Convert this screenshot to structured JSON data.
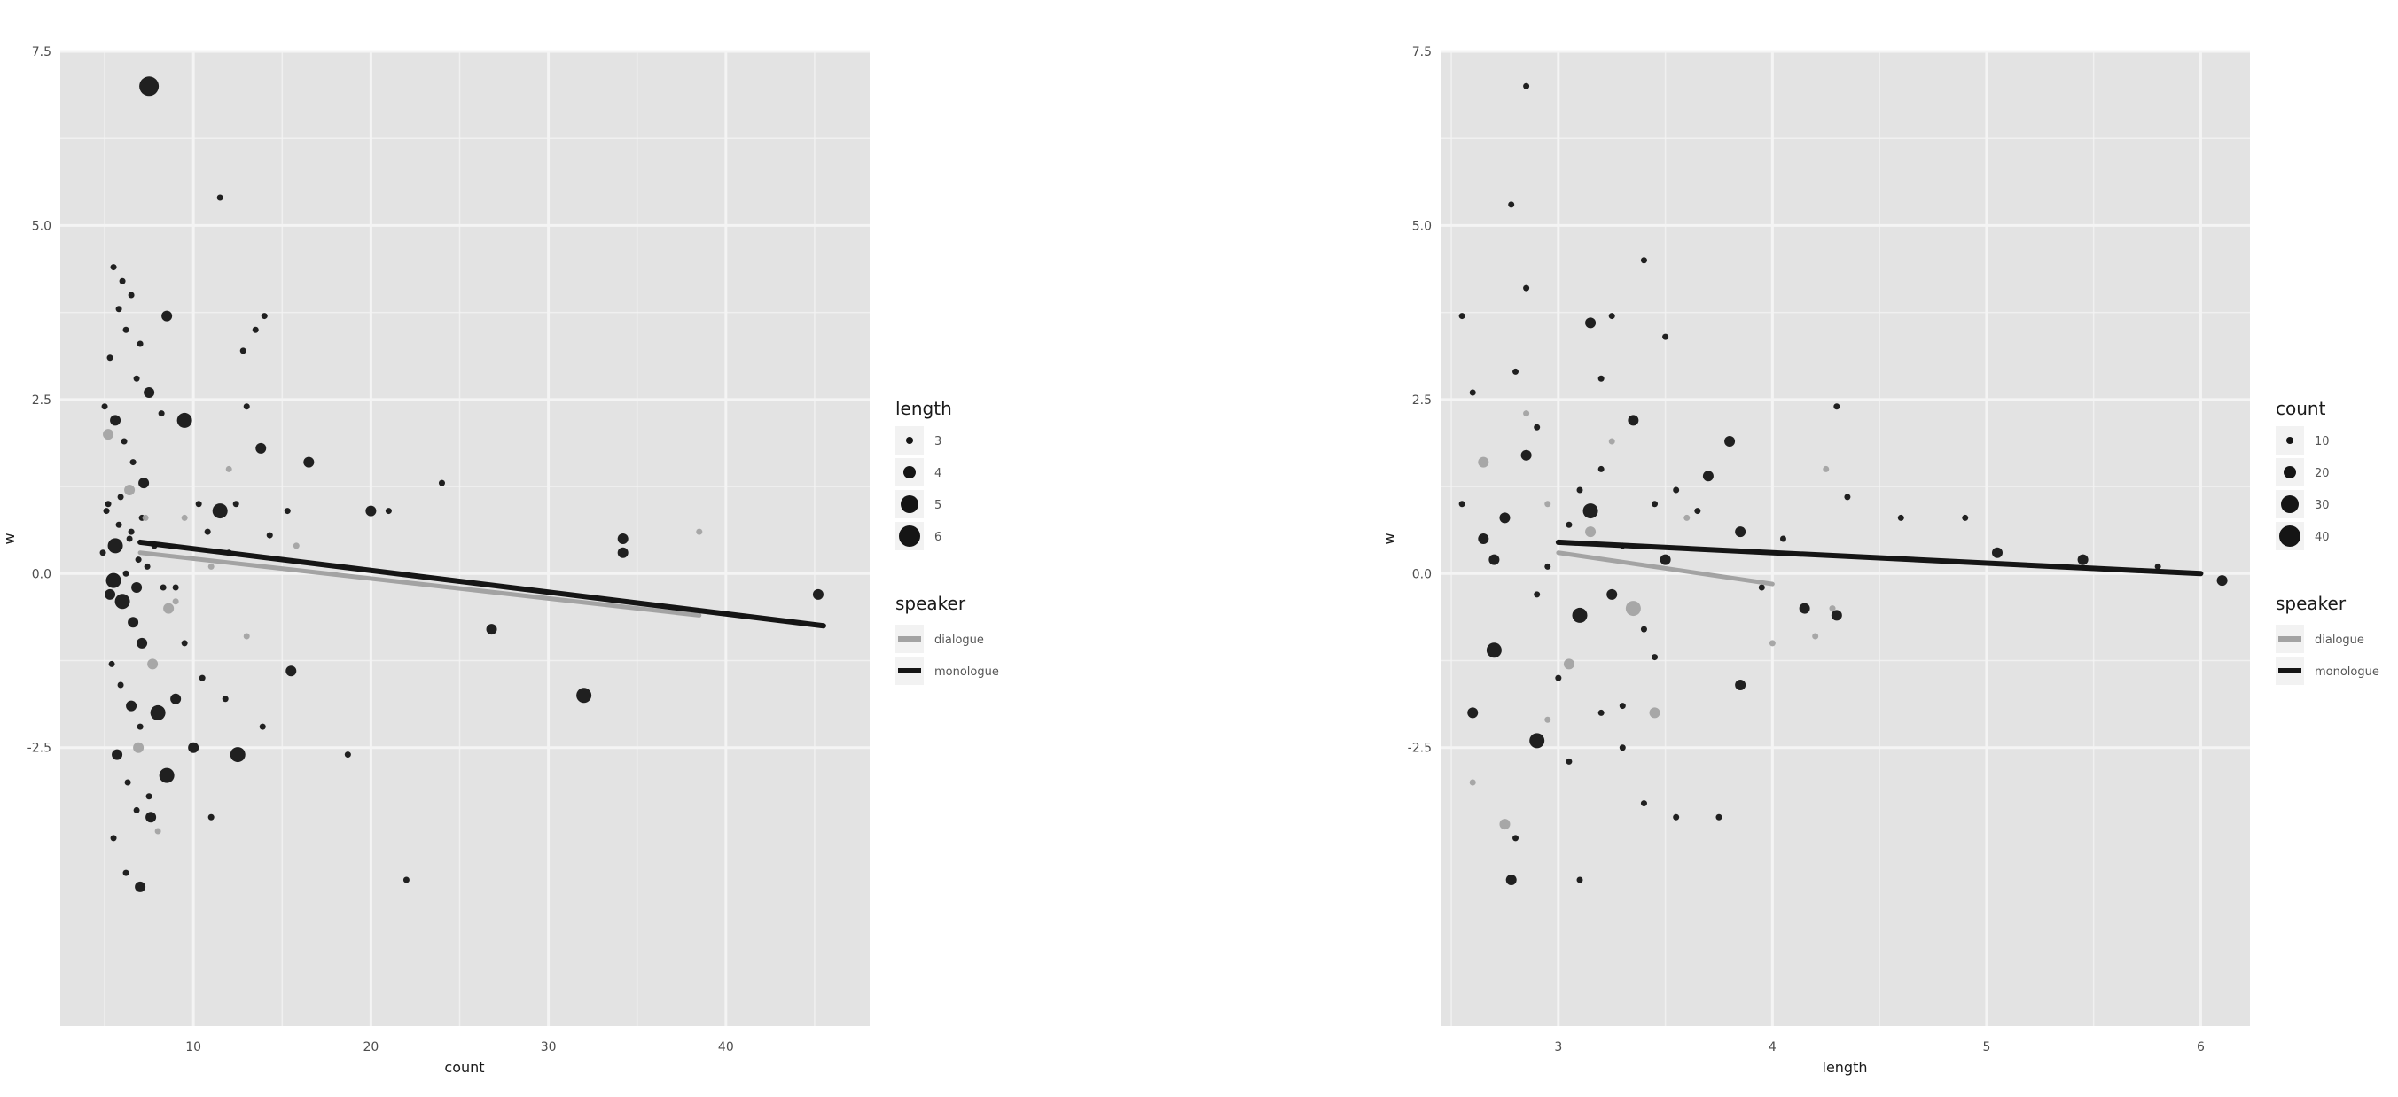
{
  "colors": {
    "panel": "#e3e3e3",
    "grid": "#f4f4f4",
    "dialogue": "#a3a3a3",
    "monologue": "#151515"
  },
  "chart_data": [
    {
      "type": "scatter",
      "title": "",
      "xlabel": "count",
      "ylabel": "w",
      "xlim": [
        2.5,
        48.1
      ],
      "ylim": [
        -6.5,
        7.5
      ],
      "xticks": [
        10,
        20,
        30,
        40
      ],
      "yticks": [
        -2.5,
        0.0,
        2.5,
        5.0,
        7.5
      ],
      "yticklabels": [
        "-2.5",
        "0.0",
        "2.5",
        "5.0",
        "7.5"
      ],
      "grid": true,
      "size_legend": {
        "title": "length",
        "labels": [
          "3",
          "4",
          "5",
          "6"
        ]
      },
      "color_legend": {
        "title": "speaker",
        "labels": [
          "dialogue",
          "monologue"
        ]
      },
      "trend_lines": [
        {
          "name": "dialogue",
          "x": [
            7,
            38.5
          ],
          "y": [
            0.3,
            -0.6
          ]
        },
        {
          "name": "monologue",
          "x": [
            7,
            45.5
          ],
          "y": [
            0.45,
            -0.75
          ]
        }
      ],
      "series": [
        {
          "name": "monologue",
          "points": [
            [
              7.5,
              7.0
            ],
            [
              11.5,
              5.4
            ],
            [
              14,
              3.7
            ],
            [
              13.5,
              3.5
            ],
            [
              12.8,
              3.2
            ],
            [
              13.0,
              2.4
            ],
            [
              24,
              1.3
            ],
            [
              5.0,
              2.4
            ],
            [
              5.5,
              4.4
            ],
            [
              6,
              4.2
            ],
            [
              6.5,
              4.0
            ],
            [
              5.8,
              3.8
            ],
            [
              6.2,
              3.5
            ],
            [
              7.0,
              3.3
            ],
            [
              8.5,
              3.7
            ],
            [
              5.3,
              3.1
            ],
            [
              6.8,
              2.8
            ],
            [
              7.5,
              2.6
            ],
            [
              5.6,
              2.2
            ],
            [
              6.1,
              1.9
            ],
            [
              6.6,
              1.6
            ],
            [
              7.2,
              1.3
            ],
            [
              5.2,
              1.0
            ],
            [
              5.8,
              0.7
            ],
            [
              6.4,
              0.5
            ],
            [
              6.9,
              0.2
            ],
            [
              5.5,
              -0.1
            ],
            [
              6.0,
              -0.4
            ],
            [
              6.6,
              -0.7
            ],
            [
              7.1,
              -1.0
            ],
            [
              5.4,
              -1.3
            ],
            [
              5.9,
              -1.6
            ],
            [
              6.5,
              -1.9
            ],
            [
              7.0,
              -2.2
            ],
            [
              5.7,
              -2.6
            ],
            [
              6.3,
              -3.0
            ],
            [
              6.8,
              -3.4
            ],
            [
              7.6,
              -3.5
            ],
            [
              5.5,
              -3.8
            ],
            [
              6.2,
              -4.3
            ],
            [
              4.9,
              0.3
            ],
            [
              5.1,
              0.9
            ],
            [
              5.3,
              -0.3
            ],
            [
              5.6,
              0.4
            ],
            [
              5.9,
              1.1
            ],
            [
              6.2,
              0.0
            ],
            [
              6.5,
              0.6
            ],
            [
              6.8,
              -0.2
            ],
            [
              7.1,
              0.8
            ],
            [
              7.4,
              0.1
            ],
            [
              7.8,
              0.4
            ],
            [
              8.3,
              -0.2
            ],
            [
              9.0,
              -0.2
            ],
            [
              10.8,
              0.6
            ],
            [
              12.0,
              0.3
            ],
            [
              14.3,
              0.55
            ],
            [
              15.3,
              0.9
            ],
            [
              10.3,
              1.0
            ],
            [
              11.5,
              0.9
            ],
            [
              13.8,
              1.8
            ],
            [
              16.5,
              1.6
            ],
            [
              20,
              0.9
            ],
            [
              21,
              0.9
            ],
            [
              9.5,
              -1.0
            ],
            [
              10.5,
              -1.5
            ],
            [
              11.8,
              -1.8
            ],
            [
              12.5,
              -2.6
            ],
            [
              13.9,
              -2.2
            ],
            [
              15.5,
              -1.4
            ],
            [
              18.7,
              -2.6
            ],
            [
              22,
              -4.4
            ],
            [
              26.8,
              -0.8
            ],
            [
              32,
              -1.75
            ],
            [
              34.2,
              0.5
            ],
            [
              34.2,
              0.3
            ],
            [
              45.2,
              -0.3
            ],
            [
              8.0,
              -2.0
            ],
            [
              9.0,
              -1.8
            ],
            [
              10.0,
              -2.5
            ],
            [
              11.0,
              -3.5
            ],
            [
              7.0,
              -4.5
            ],
            [
              7.5,
              -3.2
            ],
            [
              8.5,
              -2.9
            ],
            [
              8.2,
              2.3
            ],
            [
              9.5,
              2.2
            ],
            [
              12.4,
              1.0
            ]
          ]
        },
        {
          "name": "dialogue",
          "points": [
            [
              8.6,
              -0.5
            ],
            [
              9.0,
              -0.4
            ],
            [
              13.0,
              -0.9
            ],
            [
              7.3,
              0.8
            ],
            [
              6.4,
              1.2
            ],
            [
              5.2,
              2.0
            ],
            [
              7.7,
              -1.3
            ],
            [
              11.0,
              0.1
            ],
            [
              15.8,
              0.4
            ],
            [
              8.0,
              -3.7
            ],
            [
              38.5,
              0.6
            ],
            [
              9.5,
              0.8
            ],
            [
              12.0,
              1.5
            ],
            [
              6.9,
              -2.5
            ]
          ]
        }
      ]
    },
    {
      "type": "scatter",
      "title": "",
      "xlabel": "length",
      "ylabel": "w",
      "xlim": [
        2.45,
        6.23
      ],
      "ylim": [
        -6.5,
        7.5
      ],
      "xticks": [
        3,
        4,
        5,
        6
      ],
      "yticks": [
        -2.5,
        0.0,
        2.5,
        5.0,
        7.5
      ],
      "yticklabels": [
        "-2.5",
        "0.0",
        "2.5",
        "5.0",
        "7.5"
      ],
      "grid": true,
      "size_legend": {
        "title": "count",
        "labels": [
          "10",
          "20",
          "30",
          "40"
        ]
      },
      "color_legend": {
        "title": "speaker",
        "labels": [
          "dialogue",
          "monologue"
        ]
      },
      "trend_lines": [
        {
          "name": "dialogue",
          "x": [
            3,
            4
          ],
          "y": [
            0.3,
            -0.15
          ]
        },
        {
          "name": "monologue",
          "x": [
            3,
            6
          ],
          "y": [
            0.45,
            0.0
          ]
        }
      ],
      "series": [
        {
          "name": "monologue",
          "points": [
            [
              2.85,
              7.0
            ],
            [
              2.78,
              5.3
            ],
            [
              2.55,
              3.7
            ],
            [
              2.85,
              4.1
            ],
            [
              3.15,
              3.6
            ],
            [
              3.25,
              3.7
            ],
            [
              3.4,
              4.5
            ],
            [
              3.5,
              3.4
            ],
            [
              2.6,
              2.6
            ],
            [
              2.9,
              2.1
            ],
            [
              3.2,
              1.5
            ],
            [
              3.45,
              1.0
            ],
            [
              2.65,
              0.5
            ],
            [
              2.95,
              0.1
            ],
            [
              3.25,
              -0.3
            ],
            [
              3.4,
              -0.8
            ],
            [
              2.7,
              -1.1
            ],
            [
              3.0,
              -1.5
            ],
            [
              3.3,
              -1.9
            ],
            [
              2.6,
              -2.0
            ],
            [
              2.9,
              -2.4
            ],
            [
              3.2,
              -2.0
            ],
            [
              3.4,
              -3.3
            ],
            [
              2.8,
              -3.8
            ],
            [
              3.1,
              -4.4
            ],
            [
              2.78,
              -4.4
            ],
            [
              3.55,
              -3.5
            ],
            [
              3.05,
              -2.7
            ],
            [
              2.55,
              1.0
            ],
            [
              2.75,
              0.8
            ],
            [
              3.05,
              0.7
            ],
            [
              3.3,
              0.4
            ],
            [
              3.5,
              0.2
            ],
            [
              2.7,
              0.2
            ],
            [
              3.1,
              -0.6
            ],
            [
              3.45,
              -1.2
            ],
            [
              3.7,
              1.4
            ],
            [
              3.85,
              0.6
            ],
            [
              4.05,
              0.5
            ],
            [
              4.15,
              -0.5
            ],
            [
              4.3,
              -0.6
            ],
            [
              4.35,
              1.1
            ],
            [
              3.8,
              1.9
            ],
            [
              4.3,
              2.4
            ],
            [
              4.6,
              0.8
            ],
            [
              4.9,
              0.8
            ],
            [
              5.05,
              0.3
            ],
            [
              5.45,
              0.2
            ],
            [
              5.8,
              0.1
            ],
            [
              6.1,
              -0.1
            ],
            [
              3.75,
              -3.5
            ],
            [
              3.85,
              -1.6
            ],
            [
              3.95,
              -0.2
            ],
            [
              2.85,
              1.7
            ],
            [
              3.2,
              2.8
            ],
            [
              3.35,
              2.2
            ],
            [
              2.9,
              -0.3
            ],
            [
              3.15,
              0.9
            ],
            [
              3.3,
              -2.5
            ],
            [
              3.55,
              1.2
            ],
            [
              3.65,
              0.9
            ],
            [
              2.8,
              2.9
            ],
            [
              3.1,
              1.2
            ]
          ]
        },
        {
          "name": "dialogue",
          "points": [
            [
              2.6,
              -3.0
            ],
            [
              2.75,
              -3.6
            ],
            [
              2.85,
              2.3
            ],
            [
              2.95,
              1.0
            ],
            [
              3.05,
              -1.3
            ],
            [
              3.15,
              0.6
            ],
            [
              3.35,
              -0.5
            ],
            [
              3.45,
              -2.0
            ],
            [
              3.6,
              0.8
            ],
            [
              4.2,
              -0.9
            ],
            [
              4.28,
              -0.5
            ],
            [
              4.25,
              1.5
            ],
            [
              2.65,
              1.6
            ],
            [
              2.95,
              -2.1
            ],
            [
              3.25,
              1.9
            ],
            [
              4.0,
              -1.0
            ]
          ]
        }
      ]
    }
  ]
}
